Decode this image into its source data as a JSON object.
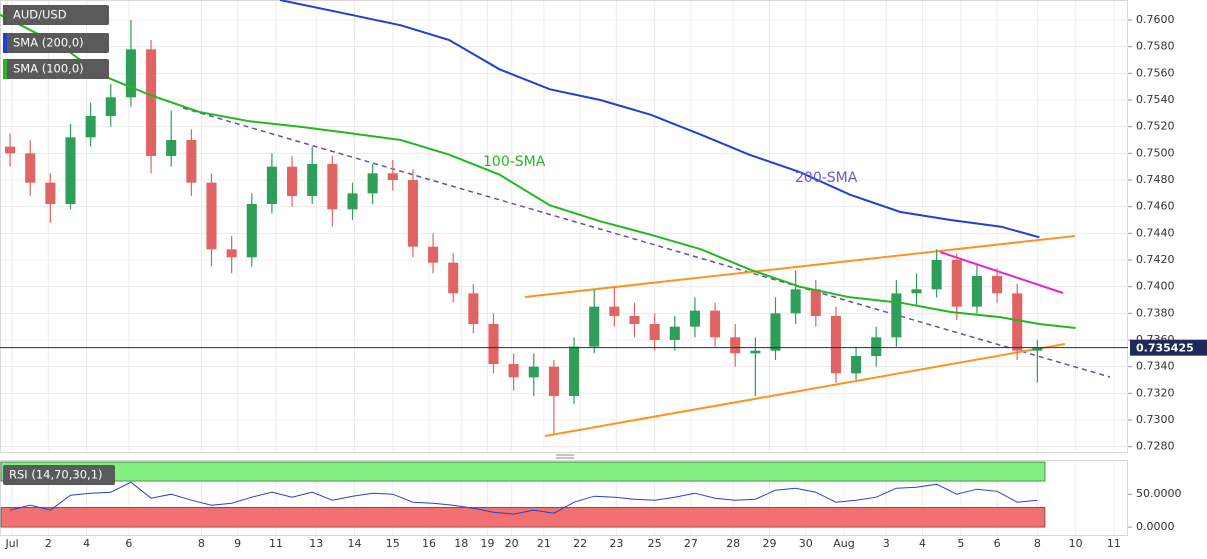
{
  "chart_data": [
    {
      "type": "candlestick",
      "title": "AUD/USD",
      "x": [
        0.5,
        1.5,
        2.5,
        3.5,
        4.5,
        5.5,
        6.5,
        7.5,
        8.5,
        9.5,
        10.5,
        11.5,
        12.5,
        13.5,
        14.5,
        15.5,
        16.5,
        17.5,
        18.5,
        19.5,
        20.5,
        21.5,
        22.5,
        23.5,
        24.5,
        25.5,
        26.5,
        27.5,
        28.5,
        29.5,
        30.5,
        31.5,
        32.5,
        33.5,
        34.5,
        35.5,
        36.5,
        37.5,
        38.5,
        39.5,
        40.5,
        41.5,
        42.5,
        43.5,
        44.5,
        45.5,
        46.5,
        47.5,
        48.5,
        49.5,
        50.5,
        51.5
      ],
      "open": [
        0.7505,
        0.75,
        0.7478,
        0.7462,
        0.7512,
        0.7528,
        0.7542,
        0.7578,
        0.7498,
        0.751,
        0.7478,
        0.7428,
        0.7422,
        0.7462,
        0.749,
        0.7468,
        0.7492,
        0.7458,
        0.747,
        0.7485,
        0.748,
        0.743,
        0.7418,
        0.7395,
        0.7372,
        0.7342,
        0.7332,
        0.734,
        0.7318,
        0.7355,
        0.7385,
        0.7378,
        0.7372,
        0.736,
        0.737,
        0.7382,
        0.7362,
        0.735,
        0.7352,
        0.738,
        0.7398,
        0.7378,
        0.7335,
        0.7348,
        0.7362,
        0.7395,
        0.7398,
        0.742,
        0.7385,
        0.7408,
        0.7395,
        0.7352
      ],
      "high": [
        0.7515,
        0.751,
        0.7485,
        0.7522,
        0.7538,
        0.7552,
        0.76,
        0.7585,
        0.7532,
        0.7518,
        0.7485,
        0.7438,
        0.747,
        0.75,
        0.7498,
        0.7505,
        0.7498,
        0.7478,
        0.7492,
        0.7495,
        0.7488,
        0.744,
        0.7425,
        0.7402,
        0.738,
        0.735,
        0.735,
        0.7345,
        0.7362,
        0.7398,
        0.74,
        0.7388,
        0.738,
        0.7378,
        0.7392,
        0.7388,
        0.7372,
        0.7362,
        0.7392,
        0.7412,
        0.7405,
        0.7385,
        0.7355,
        0.737,
        0.7405,
        0.741,
        0.7428,
        0.7425,
        0.7416,
        0.7414,
        0.7402,
        0.736
      ],
      "low": [
        0.749,
        0.7468,
        0.7448,
        0.7458,
        0.7505,
        0.752,
        0.7535,
        0.7485,
        0.749,
        0.7468,
        0.7415,
        0.741,
        0.7415,
        0.7455,
        0.746,
        0.7462,
        0.7445,
        0.745,
        0.7462,
        0.7472,
        0.7422,
        0.741,
        0.7388,
        0.7365,
        0.7335,
        0.7322,
        0.7318,
        0.729,
        0.7312,
        0.735,
        0.737,
        0.7362,
        0.7352,
        0.7352,
        0.7362,
        0.7355,
        0.734,
        0.7318,
        0.7345,
        0.7372,
        0.737,
        0.7328,
        0.733,
        0.734,
        0.7355,
        0.7385,
        0.7392,
        0.7375,
        0.738,
        0.7388,
        0.7345,
        0.7328
      ],
      "close": [
        0.75,
        0.7478,
        0.7462,
        0.7512,
        0.7528,
        0.7542,
        0.7578,
        0.7498,
        0.751,
        0.7478,
        0.7428,
        0.7422,
        0.7462,
        0.749,
        0.7468,
        0.7492,
        0.7458,
        0.747,
        0.7485,
        0.748,
        0.743,
        0.7418,
        0.7395,
        0.7372,
        0.7342,
        0.7332,
        0.734,
        0.7318,
        0.7355,
        0.7385,
        0.7378,
        0.7372,
        0.736,
        0.737,
        0.7382,
        0.7362,
        0.735,
        0.7352,
        0.738,
        0.7398,
        0.7378,
        0.7335,
        0.7348,
        0.7362,
        0.7395,
        0.7398,
        0.742,
        0.7385,
        0.7408,
        0.7395,
        0.7352,
        0.7354
      ],
      "up_color": "#2e9e58",
      "down_color": "#e06464",
      "series": [
        {
          "name": "SMA (200,0)",
          "color": "#1f3fd6",
          "x": [
            13.9,
            17.4,
            19.9,
            22.3,
            24.8,
            27.3,
            29.8,
            32.3,
            34.8,
            37.2,
            39.7,
            42.2,
            44.7,
            47.2,
            49.7,
            51.6
          ],
          "values": [
            0.7615,
            0.7604,
            0.7596,
            0.7585,
            0.7563,
            0.7548,
            0.754,
            0.7529,
            0.7514,
            0.7499,
            0.7486,
            0.7469,
            0.7456,
            0.745,
            0.7445,
            0.7437
          ]
        },
        {
          "name": "SMA (100,0)",
          "color": "#22b822",
          "x": [
            0,
            3.0,
            5.0,
            7.4,
            9.9,
            12.4,
            14.9,
            17.4,
            19.9,
            22.3,
            24.8,
            27.3,
            29.8,
            32.3,
            34.8,
            37.2,
            39.7,
            42.2,
            44.7,
            47.2,
            49.7,
            51.6,
            53.4
          ],
          "values": [
            0.7604,
            0.7581,
            0.7559,
            0.7544,
            0.7531,
            0.7524,
            0.752,
            0.7515,
            0.751,
            0.7499,
            0.7484,
            0.7461,
            0.7449,
            0.7439,
            0.7428,
            0.7413,
            0.74,
            0.7392,
            0.7388,
            0.7381,
            0.7377,
            0.7372,
            0.7369
          ]
        }
      ],
      "annotations": [
        "100-SMA",
        "200-SMA"
      ],
      "last_price": 0.735425,
      "xlim": [
        0,
        56
      ],
      "ylim": [
        0.7276,
        0.7615
      ],
      "yticks": [
        {
          "value": 0.728,
          "label": "0.7280"
        },
        {
          "value": 0.73,
          "label": "0.7300"
        },
        {
          "value": 0.732,
          "label": "0.7320"
        },
        {
          "value": 0.734,
          "label": "0.7340"
        },
        {
          "value": 0.736,
          "label": "0.7360"
        },
        {
          "value": 0.738,
          "label": "0.7380"
        },
        {
          "value": 0.74,
          "label": "0.7400"
        },
        {
          "value": 0.742,
          "label": "0.7420"
        },
        {
          "value": 0.744,
          "label": "0.7440"
        },
        {
          "value": 0.746,
          "label": "0.7460"
        },
        {
          "value": 0.748,
          "label": "0.7480"
        },
        {
          "value": 0.75,
          "label": "0.7500"
        },
        {
          "value": 0.752,
          "label": "0.7520"
        },
        {
          "value": 0.754,
          "label": "0.7540"
        },
        {
          "value": 0.756,
          "label": "0.7560"
        },
        {
          "value": 0.758,
          "label": "0.7580"
        },
        {
          "value": 0.76,
          "label": "0.7600"
        }
      ],
      "grid": true
    },
    {
      "type": "line",
      "title": "RSI (14,70,30,1)",
      "color": "#2244cc",
      "values": [
        25.8,
        33.3,
        25.8,
        48.5,
        51.5,
        53.0,
        68.2,
        43.9,
        50.0,
        40.9,
        33.3,
        36.4,
        45.5,
        53.0,
        45.5,
        53.0,
        40.9,
        47.0,
        51.5,
        50.0,
        37.9,
        36.4,
        33.3,
        28.8,
        22.7,
        19.7,
        25.8,
        21.2,
        37.9,
        47.0,
        45.5,
        42.4,
        40.9,
        45.5,
        51.5,
        43.9,
        40.9,
        42.4,
        56.1,
        59.1,
        53.0,
        37.9,
        40.9,
        45.5,
        59.1,
        60.6,
        65.2,
        50.0,
        57.6,
        54.5,
        37.9,
        40.9
      ],
      "overbought": 70,
      "oversold": 30,
      "ylim": [
        -12,
        102
      ],
      "yticks": [
        {
          "value": 50,
          "label": "50.0000"
        },
        {
          "value": 0,
          "label": "0.0000"
        }
      ],
      "xticks": [
        {
          "value": 0.6,
          "label": "Jul"
        },
        {
          "value": 2.4,
          "label": "2"
        },
        {
          "value": 4.3,
          "label": "4"
        },
        {
          "value": 6.4,
          "label": "6"
        },
        {
          "value": 10.0,
          "label": "8"
        },
        {
          "value": 11.8,
          "label": "9"
        },
        {
          "value": 13.7,
          "label": "11"
        },
        {
          "value": 15.7,
          "label": "13"
        },
        {
          "value": 17.6,
          "label": "14"
        },
        {
          "value": 19.5,
          "label": "15"
        },
        {
          "value": 21.3,
          "label": "16"
        },
        {
          "value": 22.9,
          "label": "18"
        },
        {
          "value": 24.2,
          "label": "19"
        },
        {
          "value": 25.4,
          "label": "20"
        },
        {
          "value": 27.0,
          "label": "21"
        },
        {
          "value": 28.8,
          "label": "22"
        },
        {
          "value": 30.6,
          "label": "23"
        },
        {
          "value": 32.5,
          "label": "25"
        },
        {
          "value": 34.3,
          "label": "27"
        },
        {
          "value": 36.4,
          "label": "28"
        },
        {
          "value": 38.2,
          "label": "29"
        },
        {
          "value": 40.0,
          "label": "30"
        },
        {
          "value": 41.9,
          "label": "Aug"
        },
        {
          "value": 44.0,
          "label": "3"
        },
        {
          "value": 45.8,
          "label": "4"
        },
        {
          "value": 47.7,
          "label": "5"
        },
        {
          "value": 49.5,
          "label": "6"
        },
        {
          "value": 51.5,
          "label": "8"
        },
        {
          "value": 53.4,
          "label": "10"
        },
        {
          "value": 55.3,
          "label": "11"
        }
      ],
      "grid": true
    }
  ]
}
